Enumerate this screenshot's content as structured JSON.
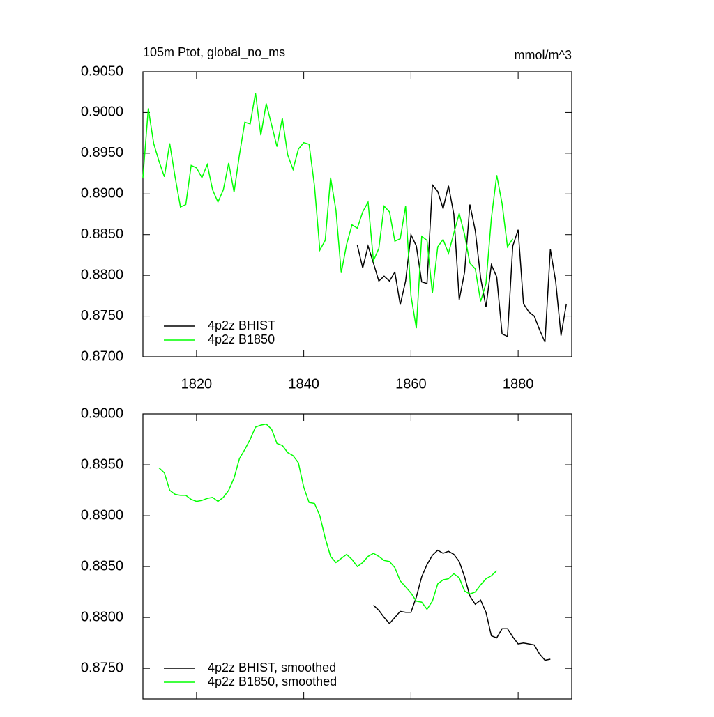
{
  "chart_data": [
    {
      "type": "line",
      "title": "105m Ptot, global_no_ms",
      "units": "mmol/m^3",
      "xlim": [
        1810,
        1890
      ],
      "xticks": [
        1820,
        1840,
        1860,
        1880
      ],
      "ylim": [
        0.87,
        0.905
      ],
      "yticks": [
        {
          "value": 0.905,
          "label": "0.9050"
        },
        {
          "value": 0.9,
          "label": "0.9000"
        },
        {
          "value": 0.895,
          "label": "0.8950"
        },
        {
          "value": 0.89,
          "label": "0.8900"
        },
        {
          "value": 0.885,
          "label": "0.8850"
        },
        {
          "value": 0.88,
          "label": "0.8800"
        },
        {
          "value": 0.875,
          "label": "0.8750"
        },
        {
          "value": 0.87,
          "label": "0.8700"
        }
      ],
      "legend": "lower left",
      "series": [
        {
          "name": "4p2z BHIST",
          "color": "#000000",
          "x": [
            1850,
            1851,
            1852,
            1853,
            1854,
            1855,
            1856,
            1857,
            1858,
            1859,
            1860,
            1861,
            1862,
            1863,
            1864,
            1865,
            1866,
            1867,
            1868,
            1869,
            1870,
            1871,
            1872,
            1873,
            1874,
            1875,
            1876,
            1877,
            1878,
            1879,
            1880,
            1881,
            1882,
            1883,
            1884,
            1885,
            1886,
            1887,
            1888,
            1889
          ],
          "values": [
            0.8837,
            0.8809,
            0.8836,
            0.8815,
            0.8793,
            0.8799,
            0.8793,
            0.8804,
            0.8764,
            0.8793,
            0.885,
            0.8836,
            0.8792,
            0.879,
            0.8911,
            0.8903,
            0.8882,
            0.891,
            0.8875,
            0.877,
            0.8804,
            0.8887,
            0.8855,
            0.8797,
            0.8761,
            0.8813,
            0.8798,
            0.8728,
            0.8725,
            0.8836,
            0.8856,
            0.8765,
            0.8755,
            0.875,
            0.8733,
            0.8718,
            0.8832,
            0.8793,
            0.8726,
            0.8765
          ]
        },
        {
          "name": "4p2z B1850",
          "color": "#00ff00",
          "x": [
            1810,
            1811,
            1812,
            1813,
            1814,
            1815,
            1816,
            1817,
            1818,
            1819,
            1820,
            1821,
            1822,
            1823,
            1824,
            1825,
            1826,
            1827,
            1828,
            1829,
            1830,
            1831,
            1832,
            1833,
            1834,
            1835,
            1836,
            1837,
            1838,
            1839,
            1840,
            1841,
            1842,
            1843,
            1844,
            1845,
            1846,
            1847,
            1848,
            1849,
            1850,
            1851,
            1852,
            1853,
            1854,
            1855,
            1856,
            1857,
            1858,
            1859,
            1860,
            1861,
            1862,
            1863,
            1864,
            1865,
            1866,
            1867,
            1868,
            1869,
            1870,
            1871,
            1872,
            1873,
            1874,
            1875,
            1876,
            1877,
            1878,
            1879
          ],
          "values": [
            0.892,
            0.9005,
            0.8962,
            0.894,
            0.8921,
            0.8962,
            0.8921,
            0.8884,
            0.8887,
            0.8935,
            0.8932,
            0.892,
            0.8936,
            0.8905,
            0.889,
            0.8905,
            0.8938,
            0.8902,
            0.8948,
            0.8988,
            0.8986,
            0.9024,
            0.8972,
            0.9011,
            0.8985,
            0.8958,
            0.8993,
            0.8948,
            0.893,
            0.8955,
            0.8963,
            0.8961,
            0.891,
            0.8831,
            0.8843,
            0.892,
            0.888,
            0.8803,
            0.8838,
            0.8862,
            0.8858,
            0.8878,
            0.889,
            0.8818,
            0.8833,
            0.8885,
            0.8878,
            0.8842,
            0.8845,
            0.8885,
            0.8775,
            0.8735,
            0.8848,
            0.8843,
            0.8778,
            0.8835,
            0.8844,
            0.8827,
            0.8852,
            0.8876,
            0.885,
            0.8815,
            0.8808,
            0.8768,
            0.879,
            0.887,
            0.8923,
            0.8888,
            0.8835,
            0.8845
          ]
        }
      ]
    },
    {
      "type": "line",
      "xlim": [
        1810,
        1890
      ],
      "xticks": [
        1820,
        1840,
        1860,
        1880
      ],
      "ylim": [
        0.872,
        0.9
      ],
      "yticks": [
        {
          "value": 0.9,
          "label": "0.9000"
        },
        {
          "value": 0.895,
          "label": "0.8950"
        },
        {
          "value": 0.89,
          "label": "0.8900"
        },
        {
          "value": 0.885,
          "label": "0.8850"
        },
        {
          "value": 0.88,
          "label": "0.8800"
        },
        {
          "value": 0.875,
          "label": "0.8750"
        }
      ],
      "legend": "lower left",
      "series": [
        {
          "name": "4p2z BHIST, smoothed",
          "color": "#000000",
          "x": [
            1853,
            1854,
            1855,
            1856,
            1857,
            1858,
            1859,
            1860,
            1861,
            1862,
            1863,
            1864,
            1865,
            1866,
            1867,
            1868,
            1869,
            1870,
            1871,
            1872,
            1873,
            1874,
            1875,
            1876,
            1877,
            1878,
            1879,
            1880,
            1881,
            1882,
            1883,
            1884,
            1885,
            1886
          ],
          "values": [
            0.8812,
            0.8807,
            0.88,
            0.8794,
            0.88,
            0.8806,
            0.8805,
            0.8805,
            0.882,
            0.884,
            0.8852,
            0.8861,
            0.8866,
            0.8863,
            0.8865,
            0.8862,
            0.8855,
            0.884,
            0.8821,
            0.8813,
            0.8817,
            0.8805,
            0.8782,
            0.878,
            0.8789,
            0.8789,
            0.8781,
            0.8774,
            0.8775,
            0.8774,
            0.8773,
            0.8764,
            0.8758,
            0.8759
          ]
        },
        {
          "name": "4p2z B1850, smoothed",
          "color": "#00ff00",
          "x": [
            1813,
            1814,
            1815,
            1816,
            1817,
            1818,
            1819,
            1820,
            1821,
            1822,
            1823,
            1824,
            1825,
            1826,
            1827,
            1828,
            1829,
            1830,
            1831,
            1832,
            1833,
            1834,
            1835,
            1836,
            1837,
            1838,
            1839,
            1840,
            1841,
            1842,
            1843,
            1844,
            1845,
            1846,
            1847,
            1848,
            1849,
            1850,
            1851,
            1852,
            1853,
            1854,
            1855,
            1856,
            1857,
            1858,
            1859,
            1860,
            1861,
            1862,
            1863,
            1864,
            1865,
            1866,
            1867,
            1868,
            1869,
            1870,
            1871,
            1872,
            1873,
            1874,
            1875,
            1876
          ],
          "values": [
            0.8947,
            0.8942,
            0.8925,
            0.8921,
            0.892,
            0.892,
            0.8916,
            0.8914,
            0.8915,
            0.8917,
            0.8918,
            0.8914,
            0.8918,
            0.8925,
            0.8937,
            0.8956,
            0.8965,
            0.8975,
            0.8987,
            0.8989,
            0.899,
            0.8985,
            0.8971,
            0.8969,
            0.8962,
            0.8959,
            0.8952,
            0.8928,
            0.8913,
            0.8912,
            0.89,
            0.8878,
            0.886,
            0.8854,
            0.8858,
            0.8862,
            0.8857,
            0.885,
            0.8854,
            0.886,
            0.8863,
            0.886,
            0.8856,
            0.8855,
            0.8849,
            0.8836,
            0.883,
            0.8824,
            0.8816,
            0.8815,
            0.8808,
            0.8816,
            0.8833,
            0.8837,
            0.8838,
            0.8843,
            0.8839,
            0.8826,
            0.8823,
            0.8825,
            0.8832,
            0.8838,
            0.8841,
            0.8846
          ]
        }
      ]
    }
  ]
}
